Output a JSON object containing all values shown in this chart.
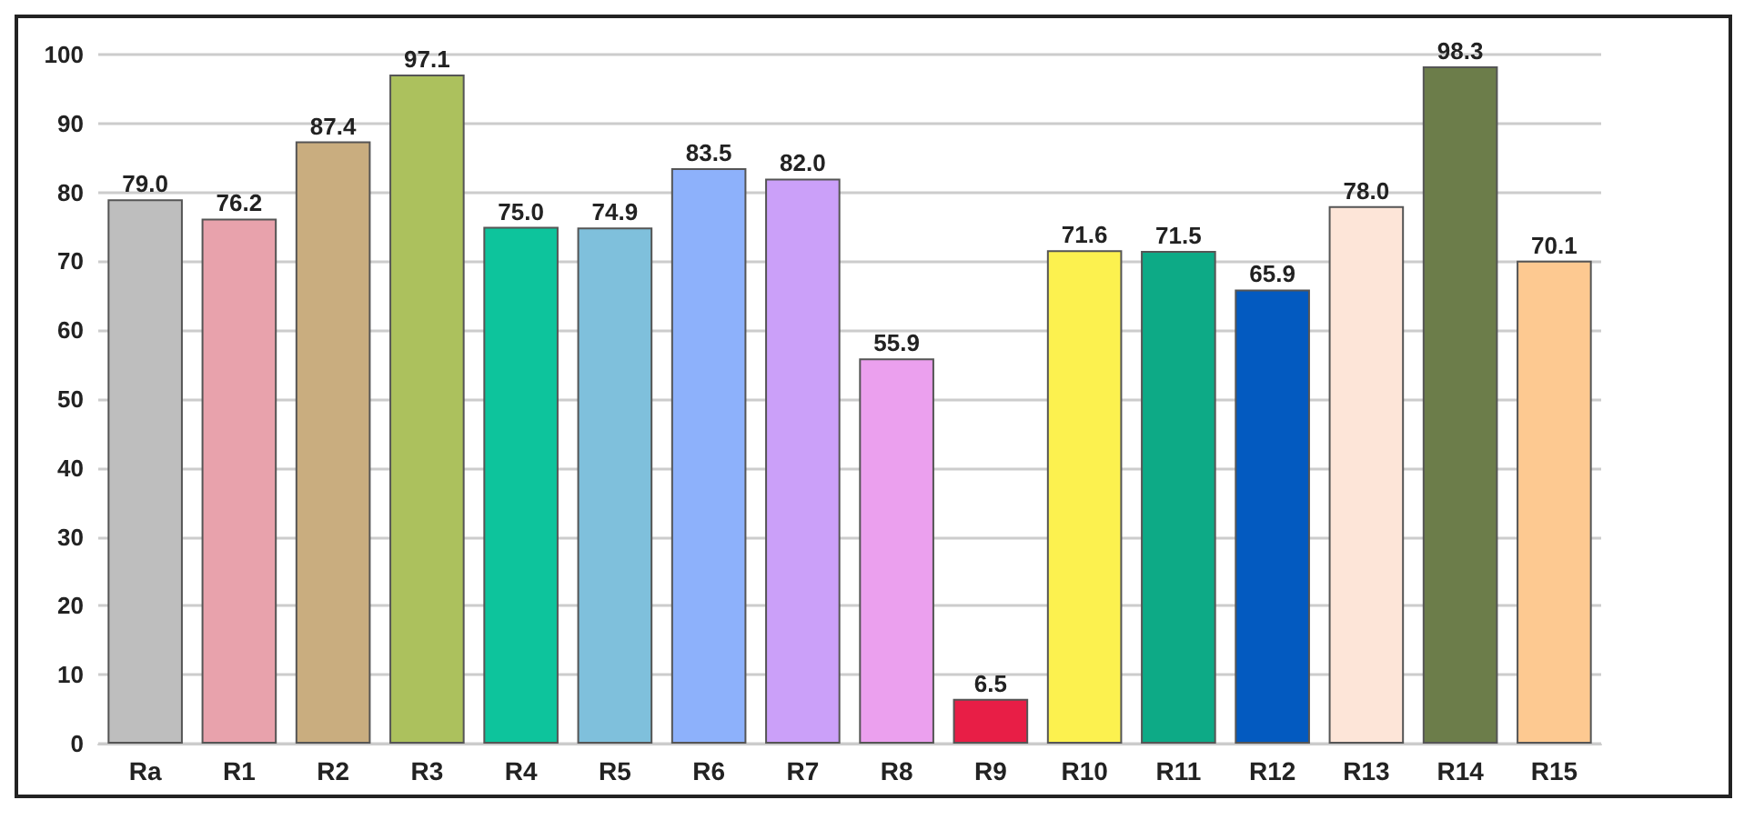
{
  "chart_data": {
    "type": "bar",
    "categories": [
      "Ra",
      "R1",
      "R2",
      "R3",
      "R4",
      "R5",
      "R6",
      "R7",
      "R8",
      "R9",
      "R10",
      "R11",
      "R12",
      "R13",
      "R14",
      "R15"
    ],
    "values": [
      79.0,
      76.2,
      87.4,
      97.1,
      75.0,
      74.9,
      83.5,
      82.0,
      55.9,
      6.5,
      71.6,
      71.5,
      65.9,
      78.0,
      98.3,
      70.1
    ],
    "colors": [
      "#bebebe",
      "#e8a2ac",
      "#c9ad7f",
      "#acc15d",
      "#0dc49c",
      "#7fc0dc",
      "#8db1fb",
      "#cba0f9",
      "#eba0ee",
      "#e81e46",
      "#fcf14f",
      "#0daa86",
      "#035ac0",
      "#fde5d8",
      "#6c7d4a",
      "#fdc991"
    ],
    "ylim": [
      0,
      100
    ],
    "yticks": [
      0,
      10,
      20,
      30,
      40,
      50,
      60,
      70,
      80,
      90,
      100
    ],
    "value_labels": [
      "79.0",
      "76.2",
      "87.4",
      "97.1",
      "75.0",
      "74.9",
      "83.5",
      "82.0",
      "55.9",
      "6.5",
      "71.6",
      "71.5",
      "65.9",
      "78.0",
      "98.3",
      "70.1"
    ],
    "grid": "y"
  }
}
